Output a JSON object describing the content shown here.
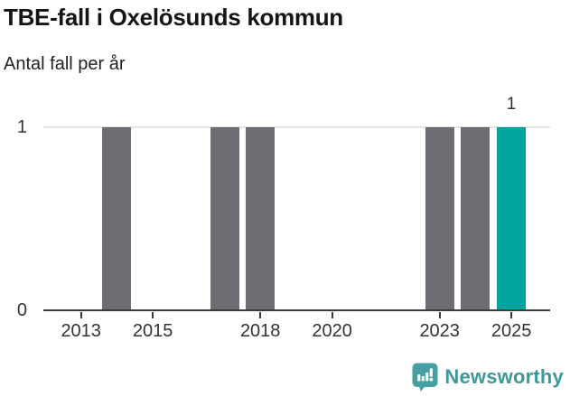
{
  "header": {
    "title": "TBE-fall i Oxelösunds kommun",
    "subtitle": "Antal fall per år"
  },
  "chart_data": {
    "type": "bar",
    "title": "TBE-fall i Oxelösunds kommun",
    "subtitle": "Antal fall per år",
    "categories": [
      2012,
      2013,
      2014,
      2015,
      2016,
      2017,
      2018,
      2019,
      2020,
      2021,
      2022,
      2023,
      2024,
      2025
    ],
    "values": [
      0,
      0,
      1,
      0,
      0,
      1,
      1,
      0,
      0,
      0,
      0,
      1,
      1,
      1
    ],
    "xlabel": "",
    "ylabel": "Antal fall per år",
    "ylim": [
      0,
      1
    ],
    "x_tick_labels": [
      "2013",
      "2015",
      "2018",
      "2020",
      "2023",
      "2025"
    ],
    "x_tick_years": [
      2013,
      2015,
      2018,
      2020,
      2023,
      2025
    ],
    "y_tick_labels": [
      "0",
      "1"
    ],
    "gridlines_y": [
      1
    ],
    "legend": "none",
    "highlight_year": 2025,
    "data_label": {
      "year": 2025,
      "text": "1"
    },
    "bar_color": "#6e6d73",
    "highlight_color": "#00a49c",
    "gridline_color": "#e4e4e4",
    "axis_color": "#3b3b3b",
    "tick_label_color": "#333333"
  },
  "footer": {
    "logo_text": "Newsworthy",
    "logo_icon": "newsworthy-bar-chart-bubble-icon",
    "logo_color": "#46a0a1",
    "logo_text_color": "#3f9899"
  }
}
